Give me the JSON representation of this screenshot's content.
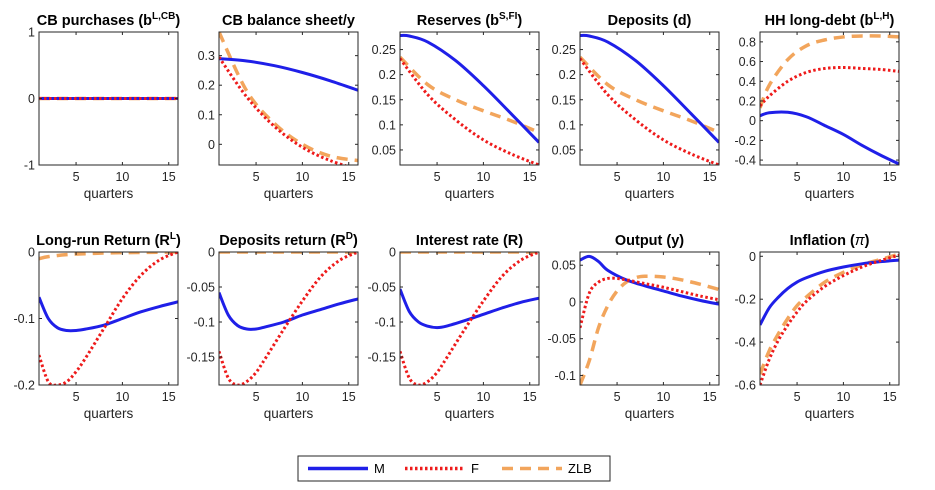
{
  "colors": {
    "M": "#1f1fe8",
    "F": "#ee1b1b",
    "ZLB": "#f2a55c",
    "axis": "#262626"
  },
  "legend": {
    "placement": "bottom-center",
    "items": [
      {
        "key": "M",
        "label": "M",
        "style": "solid"
      },
      {
        "key": "F",
        "label": "F",
        "style": "dotted"
      },
      {
        "key": "ZLB",
        "label": "ZLB",
        "style": "dashed"
      }
    ]
  },
  "chart_data": [
    {
      "type": "line",
      "title": "CB purchases (b",
      "title_sup": "L,CB",
      "title_after": ")",
      "xlabel": "quarters",
      "xlim": [
        1,
        16
      ],
      "xticks": [
        "5",
        "10",
        "15"
      ],
      "ylim": [
        -1,
        1
      ],
      "yticks": [
        "-1",
        "0",
        "1"
      ],
      "series": [
        {
          "name": "M",
          "x": [
            1,
            16
          ],
          "y": [
            0,
            0
          ]
        },
        {
          "name": "F",
          "x": [
            1,
            16
          ],
          "y": [
            0,
            0
          ]
        },
        {
          "name": "ZLB",
          "x": [
            1,
            16
          ],
          "y": [
            0,
            0
          ]
        }
      ]
    },
    {
      "type": "line",
      "title": "CB balance sheet/y",
      "title_sup": "",
      "title_after": "",
      "xlabel": "quarters",
      "xlim": [
        1,
        16
      ],
      "xticks": [
        "5",
        "10",
        "15"
      ],
      "ylim": [
        -0.07,
        0.38
      ],
      "yticks": [
        "0",
        "0.1",
        "0.2",
        "0.3"
      ],
      "series": [
        {
          "name": "M",
          "x": [
            1,
            4,
            7,
            10,
            13,
            16
          ],
          "y": [
            0.29,
            0.282,
            0.266,
            0.243,
            0.215,
            0.183
          ]
        },
        {
          "name": "F",
          "x": [
            1,
            4,
            7,
            10,
            13,
            16
          ],
          "y": [
            0.295,
            0.16,
            0.06,
            -0.01,
            -0.055,
            -0.085
          ]
        },
        {
          "name": "ZLB",
          "x": [
            1,
            4,
            7,
            10,
            13,
            16
          ],
          "y": [
            0.38,
            0.18,
            0.07,
            0.0,
            -0.04,
            -0.055
          ]
        }
      ]
    },
    {
      "type": "line",
      "title": "Reserves (b",
      "title_sup": "S,FI",
      "title_after": ")",
      "xlabel": "quarters",
      "xlim": [
        1,
        16
      ],
      "xticks": [
        "5",
        "10",
        "15"
      ],
      "ylim": [
        0.02,
        0.285
      ],
      "yticks": [
        "0.05",
        "0.1",
        "0.15",
        "0.2",
        "0.25"
      ],
      "series": [
        {
          "name": "M",
          "x": [
            1,
            2,
            4,
            7,
            10,
            13,
            16
          ],
          "y": [
            0.278,
            0.277,
            0.265,
            0.228,
            0.178,
            0.122,
            0.065
          ]
        },
        {
          "name": "F",
          "x": [
            1,
            4,
            7,
            10,
            13,
            16
          ],
          "y": [
            0.232,
            0.16,
            0.11,
            0.07,
            0.042,
            0.02
          ]
        },
        {
          "name": "ZLB",
          "x": [
            1,
            4,
            7,
            10,
            13,
            16
          ],
          "y": [
            0.235,
            0.18,
            0.15,
            0.128,
            0.108,
            0.085
          ]
        }
      ]
    },
    {
      "type": "line",
      "title": "Deposits (d)",
      "title_sup": "",
      "title_after": "",
      "xlabel": "quarters",
      "xlim": [
        1,
        16
      ],
      "xticks": [
        "5",
        "10",
        "15"
      ],
      "ylim": [
        0.02,
        0.285
      ],
      "yticks": [
        "0.05",
        "0.1",
        "0.15",
        "0.2",
        "0.25"
      ],
      "series": [
        {
          "name": "M",
          "x": [
            1,
            2,
            4,
            7,
            10,
            13,
            16
          ],
          "y": [
            0.278,
            0.277,
            0.265,
            0.228,
            0.178,
            0.122,
            0.065
          ]
        },
        {
          "name": "F",
          "x": [
            1,
            4,
            7,
            10,
            13,
            16
          ],
          "y": [
            0.232,
            0.16,
            0.11,
            0.07,
            0.042,
            0.02
          ]
        },
        {
          "name": "ZLB",
          "x": [
            1,
            4,
            7,
            10,
            13,
            16
          ],
          "y": [
            0.235,
            0.18,
            0.15,
            0.128,
            0.108,
            0.085
          ]
        }
      ]
    },
    {
      "type": "line",
      "title": "HH long-debt (b",
      "title_sup": "L,H",
      "title_after": ")",
      "xlabel": "quarters",
      "xlim": [
        1,
        16
      ],
      "xticks": [
        "5",
        "10",
        "15"
      ],
      "ylim": [
        -0.45,
        0.9
      ],
      "yticks": [
        "-0.4",
        "-0.2",
        "0",
        "0.2",
        "0.4",
        "0.6",
        "0.8"
      ],
      "series": [
        {
          "name": "M",
          "x": [
            1,
            2,
            4,
            6,
            8,
            10,
            12,
            14,
            16
          ],
          "y": [
            0.05,
            0.08,
            0.085,
            0.04,
            -0.05,
            -0.14,
            -0.25,
            -0.35,
            -0.44
          ]
        },
        {
          "name": "F",
          "x": [
            1,
            2,
            4,
            6,
            8,
            10,
            12,
            14,
            16
          ],
          "y": [
            0.15,
            0.25,
            0.4,
            0.49,
            0.53,
            0.54,
            0.53,
            0.52,
            0.5
          ]
        },
        {
          "name": "ZLB",
          "x": [
            1,
            2,
            4,
            6,
            8,
            10,
            12,
            14,
            16
          ],
          "y": [
            0.13,
            0.36,
            0.62,
            0.76,
            0.82,
            0.85,
            0.86,
            0.86,
            0.85
          ]
        }
      ]
    },
    {
      "type": "line",
      "title": "Long-run Return (R",
      "title_sup": "L",
      "title_after": ")",
      "xlabel": "quarters",
      "xlim": [
        1,
        16
      ],
      "xticks": [
        "5",
        "10",
        "15"
      ],
      "ylim": [
        -0.2,
        0.0
      ],
      "yticks": [
        "-0.2",
        "-0.1",
        "0"
      ],
      "series": [
        {
          "name": "M",
          "x": [
            1,
            2,
            3,
            4,
            5,
            6,
            8,
            10,
            12,
            14,
            16
          ],
          "y": [
            -0.068,
            -0.1,
            -0.114,
            -0.118,
            -0.118,
            -0.116,
            -0.11,
            -0.1,
            -0.09,
            -0.082,
            -0.075
          ]
        },
        {
          "name": "F",
          "x": [
            1,
            2,
            3,
            4,
            5,
            6,
            8,
            10,
            12,
            14,
            16
          ],
          "y": [
            -0.155,
            -0.195,
            -0.2,
            -0.195,
            -0.18,
            -0.16,
            -0.115,
            -0.07,
            -0.035,
            -0.012,
            0.0
          ]
        },
        {
          "name": "ZLB",
          "x": [
            1,
            2,
            4,
            7,
            10,
            13,
            16
          ],
          "y": [
            -0.01,
            -0.007,
            -0.004,
            -0.002,
            -0.001,
            -0.0005,
            0.0
          ]
        }
      ]
    },
    {
      "type": "line",
      "title": "Deposits return (R",
      "title_sup": "D",
      "title_after": ")",
      "xlabel": "quarters",
      "xlim": [
        1,
        16
      ],
      "xticks": [
        "5",
        "10",
        "15"
      ],
      "ylim": [
        -0.19,
        0.0
      ],
      "yticks": [
        "-0.15",
        "-0.1",
        "-0.05",
        "0"
      ],
      "series": [
        {
          "name": "M",
          "x": [
            1,
            2,
            3,
            4,
            5,
            6,
            8,
            10,
            12,
            14,
            16
          ],
          "y": [
            -0.058,
            -0.09,
            -0.105,
            -0.11,
            -0.11,
            -0.107,
            -0.1,
            -0.09,
            -0.082,
            -0.074,
            -0.067
          ]
        },
        {
          "name": "F",
          "x": [
            1,
            2,
            3,
            4,
            5,
            6,
            8,
            10,
            12,
            14,
            16
          ],
          "y": [
            -0.142,
            -0.18,
            -0.19,
            -0.185,
            -0.172,
            -0.152,
            -0.11,
            -0.07,
            -0.035,
            -0.012,
            0.0
          ]
        },
        {
          "name": "ZLB",
          "x": [
            1,
            16
          ],
          "y": [
            0.0,
            0.0
          ]
        }
      ]
    },
    {
      "type": "line",
      "title": "Interest rate (R)",
      "title_sup": "",
      "title_after": "",
      "xlabel": "quarters",
      "xlim": [
        1,
        16
      ],
      "xticks": [
        "5",
        "10",
        "15"
      ],
      "ylim": [
        -0.19,
        0.0
      ],
      "yticks": [
        "-0.15",
        "-0.1",
        "-0.05",
        "0"
      ],
      "series": [
        {
          "name": "M",
          "x": [
            1,
            2,
            3,
            4,
            5,
            6,
            8,
            10,
            12,
            14,
            16
          ],
          "y": [
            -0.053,
            -0.085,
            -0.1,
            -0.106,
            -0.108,
            -0.106,
            -0.098,
            -0.089,
            -0.08,
            -0.072,
            -0.066
          ]
        },
        {
          "name": "F",
          "x": [
            1,
            2,
            3,
            4,
            5,
            6,
            8,
            10,
            12,
            14,
            16
          ],
          "y": [
            -0.142,
            -0.18,
            -0.19,
            -0.185,
            -0.172,
            -0.152,
            -0.11,
            -0.07,
            -0.035,
            -0.012,
            0.0
          ]
        },
        {
          "name": "ZLB",
          "x": [
            1,
            16
          ],
          "y": [
            0.0,
            0.0
          ]
        }
      ]
    },
    {
      "type": "line",
      "title": "Output (y)",
      "title_sup": "",
      "title_after": "",
      "xlabel": "quarters",
      "xlim": [
        1,
        16
      ],
      "xticks": [
        "5",
        "10",
        "15"
      ],
      "ylim": [
        -0.113,
        0.068
      ],
      "yticks": [
        "-0.1",
        "-0.05",
        "0",
        "0.05"
      ],
      "series": [
        {
          "name": "M",
          "x": [
            1,
            2,
            3,
            4,
            6,
            8,
            10,
            12,
            14,
            16
          ],
          "y": [
            0.057,
            0.062,
            0.055,
            0.043,
            0.03,
            0.022,
            0.015,
            0.008,
            0.002,
            -0.003
          ]
        },
        {
          "name": "F",
          "x": [
            1,
            2,
            3,
            4,
            5,
            6,
            8,
            10,
            12,
            14,
            16
          ],
          "y": [
            -0.035,
            0.012,
            0.027,
            0.032,
            0.032,
            0.03,
            0.025,
            0.02,
            0.014,
            0.008,
            0.003
          ]
        },
        {
          "name": "ZLB",
          "x": [
            1,
            2,
            3,
            4,
            5,
            6,
            7,
            8,
            10,
            12,
            14,
            16
          ],
          "y": [
            -0.113,
            -0.08,
            -0.035,
            -0.005,
            0.015,
            0.027,
            0.033,
            0.035,
            0.034,
            0.03,
            0.024,
            0.017
          ]
        }
      ]
    },
    {
      "type": "line",
      "title": "Inflation (",
      "title_sup": "",
      "title_after": ")",
      "title_symbol": "π",
      "xlabel": "quarters",
      "xlim": [
        1,
        16
      ],
      "xticks": [
        "5",
        "10",
        "15"
      ],
      "ylim": [
        -0.6,
        0.02
      ],
      "yticks": [
        "-0.6",
        "-0.4",
        "-0.2",
        "0"
      ],
      "series": [
        {
          "name": "M",
          "x": [
            1,
            2,
            3,
            4,
            5,
            6,
            8,
            10,
            12,
            14,
            16
          ],
          "y": [
            -0.32,
            -0.24,
            -0.19,
            -0.15,
            -0.12,
            -0.1,
            -0.07,
            -0.05,
            -0.035,
            -0.025,
            -0.018
          ]
        },
        {
          "name": "F",
          "x": [
            1,
            2,
            3,
            4,
            5,
            6,
            8,
            10,
            12,
            14,
            16
          ],
          "y": [
            -0.6,
            -0.48,
            -0.39,
            -0.32,
            -0.26,
            -0.21,
            -0.14,
            -0.09,
            -0.05,
            -0.02,
            0.005
          ]
        },
        {
          "name": "ZLB",
          "x": [
            1,
            2,
            3,
            4,
            5,
            6,
            8,
            10,
            12,
            14,
            16
          ],
          "y": [
            -0.55,
            -0.44,
            -0.36,
            -0.29,
            -0.23,
            -0.19,
            -0.12,
            -0.075,
            -0.04,
            -0.015,
            0.01
          ]
        }
      ]
    }
  ]
}
